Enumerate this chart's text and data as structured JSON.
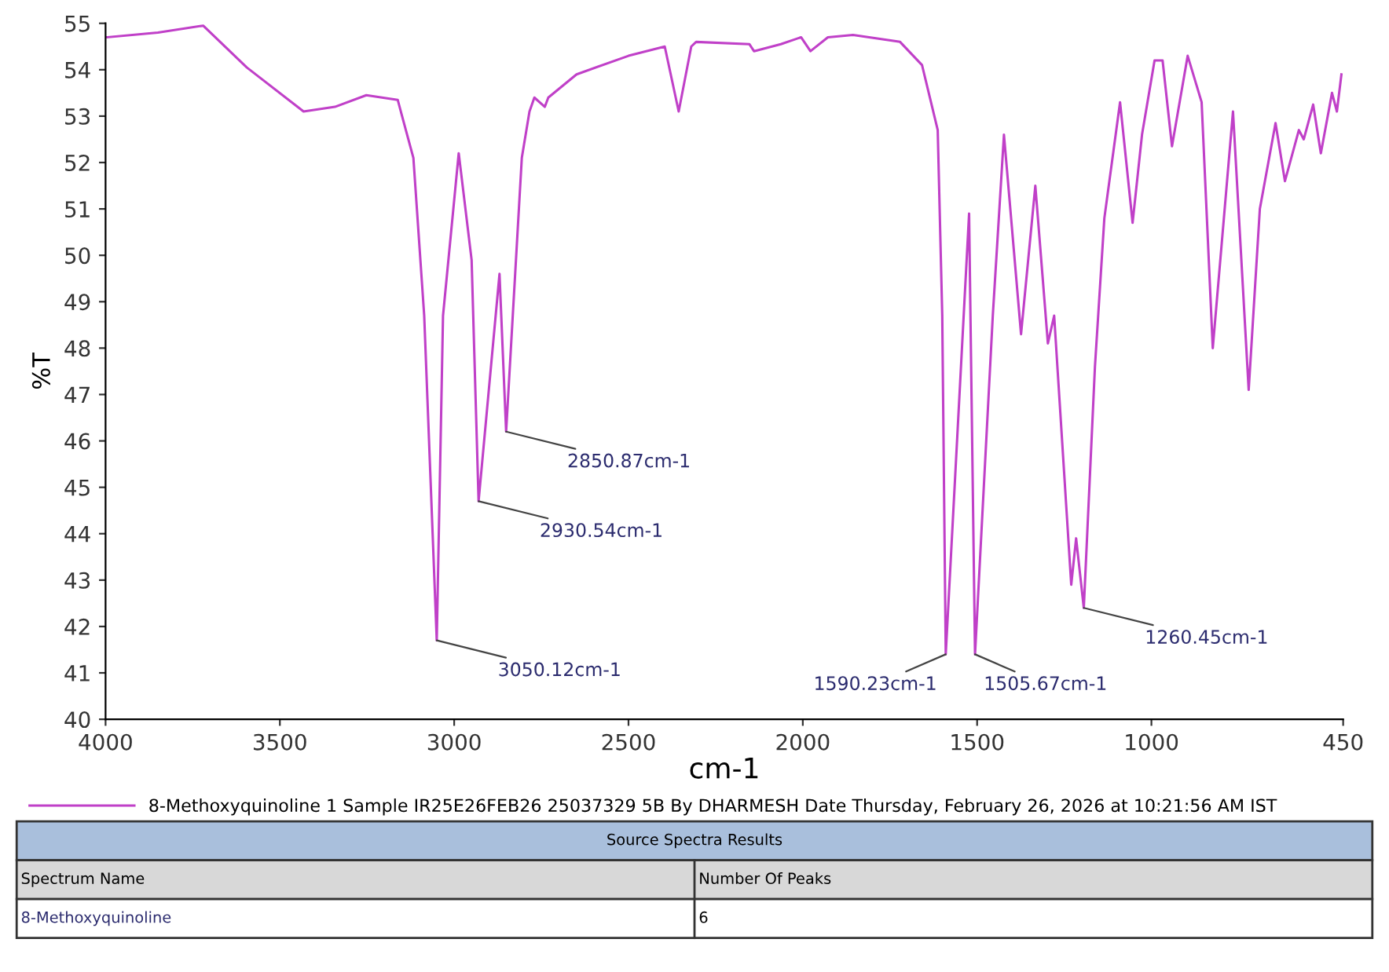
{
  "chart_data": {
    "type": "line",
    "xlabel": "cm-1",
    "ylabel": "%T",
    "xlim": [
      4000,
      450
    ],
    "ylim": [
      40,
      55
    ],
    "xticks": [
      4000,
      3500,
      3000,
      2500,
      2000,
      1500,
      1000,
      450
    ],
    "yticks": [
      40,
      41,
      42,
      43,
      44,
      45,
      46,
      47,
      48,
      49,
      50,
      51,
      52,
      53,
      54,
      55
    ],
    "grid": false,
    "legend": "bottom",
    "marker": "none",
    "line_style": "solid",
    "series": [
      {
        "name": "8-Methoxyquinoline 1 Sample IR25E26FEB26 25037329 5B By DHARMESH Date Thursday, February 26, 2026 at 10:21:56 AM IST",
        "color": "#c040c8",
        "x": [
          3995,
          3850,
          3720,
          3595,
          3432,
          3342,
          3252,
          3162,
          3117,
          3086,
          3050,
          3032,
          2987,
          2950,
          2930,
          2870,
          2851,
          2806,
          2784,
          2770,
          2740,
          2730,
          2649,
          2500,
          2396,
          2356,
          2320,
          2306,
          2153,
          2140,
          2063,
          2005,
          1978,
          1928,
          1856,
          1721,
          1658,
          1613,
          1600,
          1590,
          1523,
          1506,
          1455,
          1423,
          1374,
          1333,
          1297,
          1279,
          1230,
          1216,
          1194,
          1162,
          1135,
          1090,
          1054,
          1027,
          991,
          968,
          941,
          896,
          856,
          824,
          766,
          721,
          689,
          644,
          617,
          577,
          563,
          536,
          514,
          482,
          468,
          455
        ],
        "values": [
          54.7,
          54.8,
          54.95,
          54.05,
          53.1,
          53.2,
          53.45,
          53.35,
          52.1,
          48.7,
          41.7,
          48.7,
          52.2,
          49.9,
          44.7,
          49.6,
          46.2,
          52.1,
          53.1,
          53.4,
          53.2,
          53.4,
          53.9,
          54.3,
          54.5,
          53.1,
          54.5,
          54.6,
          54.55,
          54.4,
          54.55,
          54.7,
          54.4,
          54.7,
          54.75,
          54.6,
          54.1,
          52.7,
          48.7,
          41.4,
          50.9,
          41.4,
          48.7,
          52.6,
          48.3,
          51.5,
          48.1,
          48.7,
          42.9,
          43.9,
          42.4,
          47.6,
          50.8,
          53.3,
          50.7,
          52.6,
          54.2,
          54.2,
          52.35,
          54.3,
          53.3,
          48.0,
          53.1,
          47.1,
          51.0,
          52.85,
          51.6,
          52.7,
          52.5,
          53.25,
          52.2,
          53.5,
          53.1,
          53.9
        ]
      }
    ],
    "annotations": [
      {
        "text": "3050.12cm-1",
        "x": 3050,
        "y": 41.7
      },
      {
        "text": "2930.54cm-1",
        "x": 2930,
        "y": 44.7
      },
      {
        "text": "2850.87cm-1",
        "x": 2851,
        "y": 46.2
      },
      {
        "text": "1590.23cm-1",
        "x": 1590,
        "y": 41.4
      },
      {
        "text": "1505.67cm-1",
        "x": 1506,
        "y": 41.4
      },
      {
        "text": "1260.45cm-1",
        "x": 1194,
        "y": 42.4
      },
      "Source Spectra Results",
      "Spectrum Name",
      "Number Of Peaks",
      "8-Methoxyquinoline",
      "6"
    ]
  }
}
